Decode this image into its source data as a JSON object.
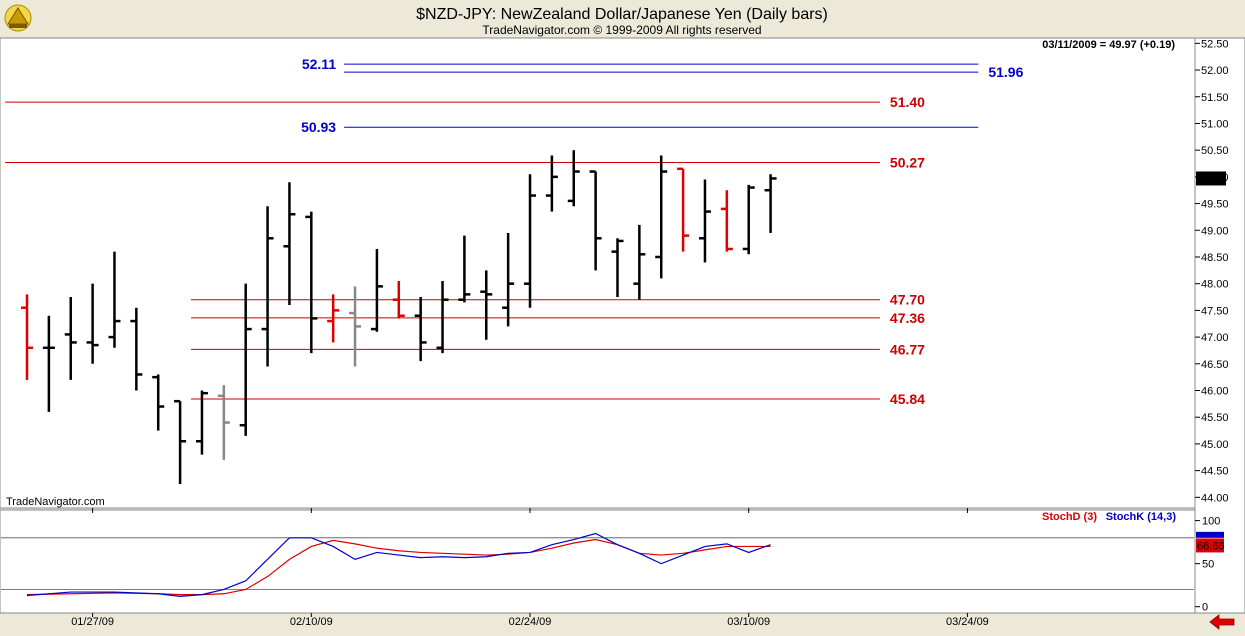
{
  "header": {
    "title": "$NZD-JPY:  NewZealand Dollar/Japanese Yen  (Daily bars)",
    "subtitle": "TradeNavigator.com © 1999-2009 All rights reserved",
    "last_readout": "03/11/2009 = 49.97 (+0.19)",
    "watermark": "TradeNavigator.com",
    "last_price_badge": "49.97"
  },
  "colors": {
    "up": "#000000",
    "down": "#dd0000",
    "neutral": "#888888",
    "blue_level": "#0000cc",
    "red_level": "#cc0000",
    "stochD": "#dd0000",
    "stochK": "#0000cc"
  },
  "chart_data": [
    {
      "type": "ohlc",
      "title": "$NZD-JPY:  NewZealand Dollar/Japanese Yen  (Daily bars)",
      "ylim": [
        43.8,
        52.6
      ],
      "yticks": [
        "52.50",
        "52.00",
        "51.50",
        "51.00",
        "50.50",
        "50.00",
        "49.50",
        "49.00",
        "48.50",
        "48.00",
        "47.50",
        "47.00",
        "46.50",
        "46.00",
        "45.50",
        "45.00",
        "44.50",
        "44.00"
      ],
      "xticks": [
        {
          "label": "01/27/09",
          "index": 3
        },
        {
          "label": "02/10/09",
          "index": 13
        },
        {
          "label": "02/24/09",
          "index": 23
        },
        {
          "label": "03/10/09",
          "index": 33
        },
        {
          "label": "03/24/09",
          "index": 43
        }
      ],
      "bars": [
        {
          "o": 47.55,
          "h": 47.8,
          "l": 46.2,
          "c": 46.8,
          "color": "down"
        },
        {
          "o": 46.8,
          "h": 47.4,
          "l": 45.6,
          "c": 46.8,
          "color": "up"
        },
        {
          "o": 47.05,
          "h": 47.75,
          "l": 46.2,
          "c": 46.9,
          "color": "up"
        },
        {
          "o": 46.9,
          "h": 48.0,
          "l": 46.5,
          "c": 46.85,
          "color": "up"
        },
        {
          "o": 47.0,
          "h": 48.6,
          "l": 46.8,
          "c": 47.3,
          "color": "up"
        },
        {
          "o": 47.3,
          "h": 47.55,
          "l": 46.0,
          "c": 46.3,
          "color": "up"
        },
        {
          "o": 46.25,
          "h": 46.3,
          "l": 45.25,
          "c": 45.7,
          "color": "up"
        },
        {
          "o": 45.8,
          "h": 45.8,
          "l": 44.25,
          "c": 45.05,
          "color": "up"
        },
        {
          "o": 45.05,
          "h": 46.0,
          "l": 44.8,
          "c": 45.95,
          "color": "up"
        },
        {
          "o": 45.9,
          "h": 46.1,
          "l": 44.7,
          "c": 45.4,
          "color": "neutral"
        },
        {
          "o": 45.35,
          "h": 48.0,
          "l": 45.15,
          "c": 47.15,
          "color": "up"
        },
        {
          "o": 47.15,
          "h": 49.45,
          "l": 46.45,
          "c": 48.85,
          "color": "up"
        },
        {
          "o": 48.7,
          "h": 49.9,
          "l": 47.6,
          "c": 49.3,
          "color": "up"
        },
        {
          "o": 49.25,
          "h": 49.35,
          "l": 46.7,
          "c": 47.35,
          "color": "up"
        },
        {
          "o": 47.3,
          "h": 47.8,
          "l": 46.9,
          "c": 47.5,
          "color": "down"
        },
        {
          "o": 47.45,
          "h": 47.95,
          "l": 46.45,
          "c": 47.2,
          "color": "neutral"
        },
        {
          "o": 47.15,
          "h": 48.65,
          "l": 47.1,
          "c": 47.95,
          "color": "up"
        },
        {
          "o": 47.7,
          "h": 48.05,
          "l": 47.35,
          "c": 47.4,
          "color": "down"
        },
        {
          "o": 47.4,
          "h": 47.75,
          "l": 46.55,
          "c": 46.9,
          "color": "up"
        },
        {
          "o": 46.8,
          "h": 48.05,
          "l": 46.7,
          "c": 47.7,
          "color": "up"
        },
        {
          "o": 47.7,
          "h": 48.9,
          "l": 47.65,
          "c": 47.8,
          "color": "up"
        },
        {
          "o": 47.85,
          "h": 48.25,
          "l": 46.95,
          "c": 47.8,
          "color": "up"
        },
        {
          "o": 47.55,
          "h": 48.95,
          "l": 47.2,
          "c": 48.0,
          "color": "up"
        },
        {
          "o": 48.0,
          "h": 50.05,
          "l": 47.55,
          "c": 49.65,
          "color": "up"
        },
        {
          "o": 49.65,
          "h": 50.4,
          "l": 49.35,
          "c": 50.0,
          "color": "up"
        },
        {
          "o": 49.55,
          "h": 50.5,
          "l": 49.45,
          "c": 50.1,
          "color": "up"
        },
        {
          "o": 50.1,
          "h": 50.1,
          "l": 48.25,
          "c": 48.85,
          "color": "up"
        },
        {
          "o": 48.6,
          "h": 48.85,
          "l": 47.75,
          "c": 48.8,
          "color": "up"
        },
        {
          "o": 48.0,
          "h": 49.1,
          "l": 47.7,
          "c": 48.55,
          "color": "up"
        },
        {
          "o": 48.5,
          "h": 50.4,
          "l": 48.1,
          "c": 50.1,
          "color": "up"
        },
        {
          "o": 50.15,
          "h": 50.15,
          "l": 48.6,
          "c": 48.9,
          "color": "down"
        },
        {
          "o": 48.85,
          "h": 49.95,
          "l": 48.4,
          "c": 49.35,
          "color": "up"
        },
        {
          "o": 49.4,
          "h": 49.75,
          "l": 48.6,
          "c": 48.65,
          "color": "down"
        },
        {
          "o": 48.65,
          "h": 49.85,
          "l": 48.55,
          "c": 49.8,
          "color": "up"
        },
        {
          "o": 49.75,
          "h": 50.05,
          "l": 48.95,
          "c": 49.97,
          "color": "up"
        }
      ],
      "levels": [
        {
          "label": "52.11",
          "value": 52.11,
          "color": "blue",
          "label_side": "left",
          "x_start": 14.5,
          "x_end": 43.5
        },
        {
          "label": "51.96",
          "value": 51.96,
          "color": "blue",
          "label_side": "right",
          "x_start": 14.5,
          "x_end": 43.5
        },
        {
          "label": "51.40",
          "value": 51.4,
          "color": "red",
          "label_side": "right",
          "x_start": -1,
          "x_end": 39
        },
        {
          "label": "50.93",
          "value": 50.93,
          "color": "blue",
          "label_side": "left",
          "x_start": 14.5,
          "x_end": 43.5
        },
        {
          "label": "50.27",
          "value": 50.27,
          "color": "red",
          "label_side": "right",
          "x_start": -1,
          "x_end": 39
        },
        {
          "label": "47.70",
          "value": 47.7,
          "color": "red",
          "label_side": "right",
          "x_start": 7.5,
          "x_end": 39
        },
        {
          "label": "47.36",
          "value": 47.36,
          "color": "red",
          "label_side": "right",
          "x_start": 7.5,
          "x_end": 39
        },
        {
          "label": "46.77",
          "value": 46.77,
          "color": "red",
          "label_side": "right",
          "x_start": 7.5,
          "x_end": 39
        },
        {
          "label": "45.84",
          "value": 45.84,
          "color": "red",
          "label_side": "right",
          "x_start": 7.5,
          "x_end": 39
        }
      ]
    },
    {
      "type": "line",
      "title": "",
      "legend": [
        "StochD (3)",
        "StochK (14,3)"
      ],
      "ylim": [
        -5,
        110
      ],
      "yticks": [
        "100",
        "50",
        "0"
      ],
      "reference_lines": [
        80,
        20
      ],
      "last_value_badge": "66.66",
      "series": [
        {
          "name": "StochD (3)",
          "color": "stochD",
          "x": [
            0,
            2,
            4,
            6,
            7,
            8,
            9,
            10,
            11,
            12,
            13,
            14,
            15,
            16,
            17,
            18,
            19,
            20,
            21,
            22,
            23,
            24,
            25,
            26,
            27,
            28,
            29,
            30,
            31,
            32,
            33,
            34
          ],
          "values": [
            14,
            15,
            16,
            15,
            14,
            14,
            15,
            20,
            35,
            55,
            70,
            77,
            73,
            68,
            65,
            63,
            62,
            61,
            60,
            61,
            63,
            68,
            74,
            78,
            72,
            62,
            60,
            62,
            66,
            70,
            70,
            70
          ]
        },
        {
          "name": "StochK (14,3)",
          "color": "stochK",
          "x": [
            0,
            2,
            4,
            6,
            7,
            8,
            9,
            10,
            11,
            12,
            13,
            14,
            15,
            16,
            17,
            18,
            19,
            20,
            21,
            22,
            23,
            24,
            25,
            26,
            27,
            28,
            29,
            30,
            31,
            32,
            33,
            34
          ],
          "values": [
            13,
            17,
            17,
            15,
            12,
            14,
            20,
            30,
            55,
            80,
            80,
            70,
            55,
            63,
            60,
            57,
            58,
            57,
            58,
            62,
            63,
            72,
            78,
            85,
            72,
            62,
            50,
            60,
            70,
            73,
            63,
            72
          ]
        }
      ]
    }
  ]
}
